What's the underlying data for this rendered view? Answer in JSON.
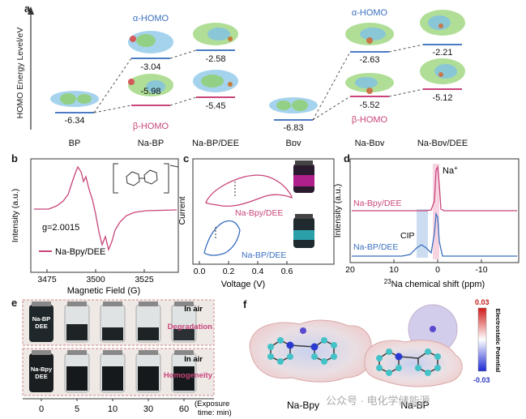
{
  "panel_a": {
    "label": "a",
    "ylabel": "HOMO Energy Level/eV",
    "categories": [
      "BP",
      "Na-BP",
      "Na-BP/DEE",
      "Bpy",
      "Na-Bpy",
      "Na-Bpy/DEE"
    ],
    "alpha_label": "α-HOMO",
    "beta_label": "β-HOMO",
    "levels": {
      "bp": "-6.34",
      "nabp_alpha": "-3.04",
      "nabp_beta": "-5.98",
      "nabpdee_alpha": "-2.58",
      "nabpdee_beta": "-5.45",
      "bpy": "-6.83",
      "nabpy_alpha": "-2.63",
      "nabpy_beta": "-5.52",
      "nabpydee_alpha": "-2.21",
      "nabpydee_beta": "-5.12"
    }
  },
  "panel_b": {
    "label": "b",
    "ylabel": "Intensity (a.u.)",
    "xlabel": "Magnetic Field (G)",
    "ticks": [
      "3475",
      "3500",
      "3525"
    ],
    "g_value": "g=2.0015",
    "legend": "Na-Bpy/DEE"
  },
  "panel_c": {
    "label": "c",
    "ylabel": "Current",
    "xlabel": "Voltage (V)",
    "ticks": [
      "0.0",
      "0.2",
      "0.4",
      "0.6"
    ],
    "series1": "Na-Bpy/DEE",
    "series2": "Na-BP/DEE"
  },
  "panel_d": {
    "label": "d",
    "ylabel": "Intensity (a.u.)",
    "xlabel_sup": "23",
    "xlabel": "Na chemical shift (ppm)",
    "ticks": [
      "20",
      "10",
      "0",
      "-10"
    ],
    "series1": "Na-Bpy/DEE",
    "series2": "Na-BP/DEE",
    "peak_na": "Na",
    "peak_na_sup": "+",
    "peak_cip": "CIP"
  },
  "panel_e": {
    "label": "e",
    "row1_vial": "Na-BP\nDEE",
    "row1_in_air": "In air",
    "row1_status": "Degradation",
    "row2_vial": "Na-Bpy\nDEE",
    "row2_in_air": "In air",
    "row2_status": "Homogeneity",
    "ticks": [
      "0",
      "5",
      "10",
      "30",
      "60"
    ],
    "xlabel_line1": "(Exposure",
    "xlabel_line2": "time: min)"
  },
  "panel_f": {
    "label": "f",
    "mol1": "Na-Bpy",
    "mol2": "Na-BP",
    "colorbar_max": "0.03",
    "colorbar_min": "-0.03",
    "colorbar_title": "Electrostatic Potential"
  },
  "watermark": "公众号 · 电化学储能源",
  "colors": {
    "alpha": "#3a6fbf",
    "beta": "#c8447a",
    "series_pink": "#c8447a",
    "series_blue": "#3a6fbf"
  }
}
